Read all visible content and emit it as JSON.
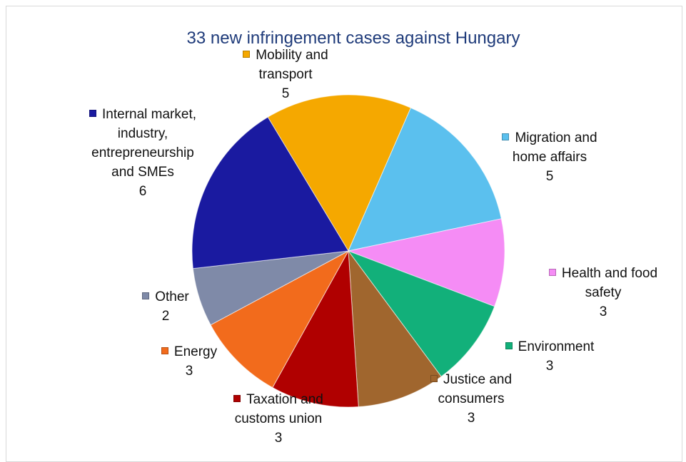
{
  "chart_data": {
    "type": "pie",
    "title": "33 new infringement cases against Hungary",
    "categories": [
      "Mobility and transport",
      "Migration and home affairs",
      "Health and food safety",
      "Environment",
      "Justice and consumers",
      "Taxation and customs union",
      "Energy",
      "Other",
      "Internal market, industry, entrepreneurship and SMEs"
    ],
    "values": [
      5,
      5,
      3,
      3,
      3,
      3,
      3,
      2,
      6
    ],
    "colors": [
      "#f5a800",
      "#5bc0ee",
      "#f58cf5",
      "#12b07a",
      "#a0662e",
      "#b00000",
      "#f26b1c",
      "#7f8aa8",
      "#1a1aa0"
    ]
  }
}
